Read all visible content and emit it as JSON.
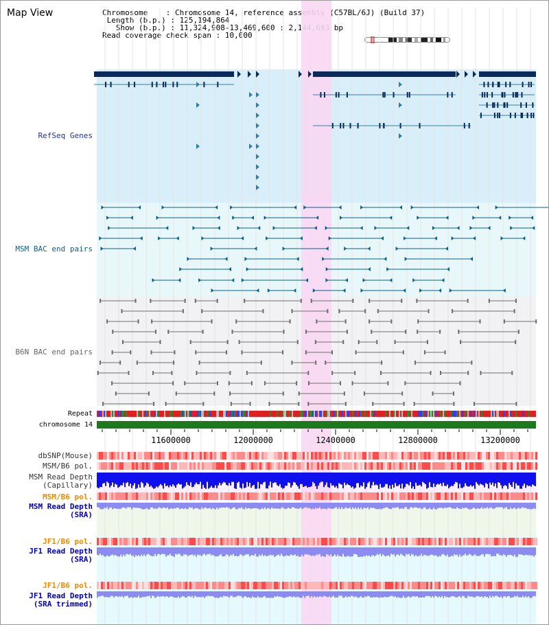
{
  "view_title": "Map View",
  "info": {
    "chromosome_label": "Chromosome",
    "chromosome_value": "Chromosome 14, reference assembly (C57BL/6J) (Build 37)",
    "length_label": "Length (b.p.)",
    "length_value": "125,194,864",
    "show_label": "Show (b.p.)",
    "show_value": "11,324,908-13,469,600 : 2,144,693 bp",
    "coverage_label": "Read coverage check span",
    "coverage_value": "10,000"
  },
  "tracks": {
    "refseq": "RefSeq Genes",
    "msm_bac": "MSM BAC end pairs",
    "b6n_bac": "B6N BAC end pairs",
    "repeat": "Repeat",
    "chromosome": "chromosome 14",
    "dbsnp": "dbSNP(Mouse)",
    "msm_b6_pol_1": "MSM/B6 pol.",
    "msm_read_depth_cap_1": "MSM Read Depth",
    "msm_read_depth_cap_2": "(Capillary)",
    "msm_b6_pol_2": "MSM/B6 pol.",
    "msm_read_depth_sra_1": "MSM Read Depth",
    "msm_read_depth_sra_2": "(SRA)",
    "jf1_b6_pol_1": "JF1/B6 pol.",
    "jf1_read_depth_sra_1": "JF1 Read Depth",
    "jf1_read_depth_sra_2": "(SRA)",
    "jf1_b6_pol_2": "JF1/B6 pol.",
    "jf1_read_depth_trim_1": "JF1 Read Depth",
    "jf1_read_depth_trim_2": "(SRA trimmed)"
  },
  "axis": {
    "ticks": [
      "11600000",
      "12000000",
      "12400000",
      "12800000",
      "13200000"
    ]
  },
  "colors": {
    "highlight": "#f9d7f3",
    "refseq_bg": "#d8eef8",
    "msm_bg": "#e8f8fa",
    "b6n_bg": "#f2f2f4",
    "gene_dark": "#0b2a5c",
    "gene_line": "#2f7fa0",
    "msm_line": "#0a5f86",
    "b6n_line": "#6d6d6d",
    "chromosome_bar": "#1c7a1c",
    "repeat_red": "#e02020",
    "depth_capillary": "#1010ee",
    "depth_sra": "#8b8bf2",
    "pol_label_color": "#ee8a00",
    "depth_label_color": "#0000bb"
  }
}
